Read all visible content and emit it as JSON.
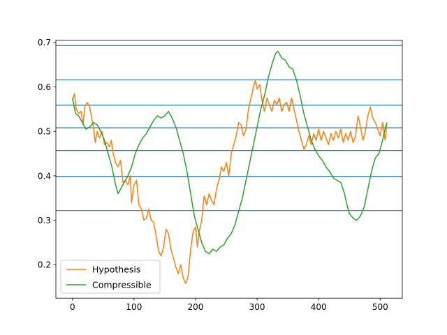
{
  "chart_data": {
    "type": "line",
    "xlim": [
      -27,
      536
    ],
    "ylim": [
      0.125,
      0.705
    ],
    "x_ticks": [
      0,
      100,
      200,
      300,
      400,
      500
    ],
    "y_ticks": [
      0.2,
      0.3,
      0.4,
      0.5,
      0.6,
      0.7
    ],
    "grid": false,
    "legend_position": "lower-left",
    "hlines": {
      "color": "#1f77b4",
      "values": [
        0.693,
        0.616,
        0.559,
        0.508,
        0.457,
        0.399,
        0.322
      ]
    },
    "series": [
      {
        "name": "Hypothesis",
        "color": "#ff7f0e",
        "points": [
          [
            0,
            0.57
          ],
          [
            3,
            0.585
          ],
          [
            6,
            0.55
          ],
          [
            10,
            0.54
          ],
          [
            14,
            0.545
          ],
          [
            17,
            0.515
          ],
          [
            20,
            0.555
          ],
          [
            24,
            0.565
          ],
          [
            28,
            0.555
          ],
          [
            31,
            0.53
          ],
          [
            34,
            0.51
          ],
          [
            37,
            0.475
          ],
          [
            40,
            0.5
          ],
          [
            44,
            0.485
          ],
          [
            48,
            0.5
          ],
          [
            52,
            0.47
          ],
          [
            56,
            0.475
          ],
          [
            60,
            0.465
          ],
          [
            63,
            0.48
          ],
          [
            66,
            0.45
          ],
          [
            70,
            0.43
          ],
          [
            74,
            0.42
          ],
          [
            78,
            0.435
          ],
          [
            82,
            0.385
          ],
          [
            86,
            0.39
          ],
          [
            90,
            0.38
          ],
          [
            94,
            0.4
          ],
          [
            96,
            0.34
          ],
          [
            100,
            0.38
          ],
          [
            104,
            0.39
          ],
          [
            108,
            0.335
          ],
          [
            112,
            0.325
          ],
          [
            116,
            0.3
          ],
          [
            120,
            0.305
          ],
          [
            124,
            0.325
          ],
          [
            128,
            0.3
          ],
          [
            132,
            0.295
          ],
          [
            136,
            0.265
          ],
          [
            140,
            0.23
          ],
          [
            144,
            0.22
          ],
          [
            148,
            0.24
          ],
          [
            152,
            0.28
          ],
          [
            156,
            0.27
          ],
          [
            160,
            0.235
          ],
          [
            164,
            0.215
          ],
          [
            168,
            0.195
          ],
          [
            172,
            0.18
          ],
          [
            176,
            0.2
          ],
          [
            180,
            0.17
          ],
          [
            184,
            0.158
          ],
          [
            188,
            0.175
          ],
          [
            192,
            0.235
          ],
          [
            196,
            0.275
          ],
          [
            200,
            0.285
          ],
          [
            203,
            0.24
          ],
          [
            206,
            0.275
          ],
          [
            210,
            0.3
          ],
          [
            214,
            0.355
          ],
          [
            218,
            0.335
          ],
          [
            222,
            0.36
          ],
          [
            226,
            0.345
          ],
          [
            230,
            0.335
          ],
          [
            234,
            0.37
          ],
          [
            238,
            0.39
          ],
          [
            242,
            0.42
          ],
          [
            246,
            0.41
          ],
          [
            250,
            0.43
          ],
          [
            254,
            0.4
          ],
          [
            258,
            0.45
          ],
          [
            262,
            0.47
          ],
          [
            266,
            0.49
          ],
          [
            270,
            0.52
          ],
          [
            274,
            0.515
          ],
          [
            278,
            0.49
          ],
          [
            282,
            0.505
          ],
          [
            286,
            0.55
          ],
          [
            290,
            0.575
          ],
          [
            294,
            0.6
          ],
          [
            297,
            0.615
          ],
          [
            300,
            0.595
          ],
          [
            304,
            0.605
          ],
          [
            308,
            0.57
          ],
          [
            312,
            0.545
          ],
          [
            316,
            0.575
          ],
          [
            320,
            0.56
          ],
          [
            324,
            0.545
          ],
          [
            328,
            0.57
          ],
          [
            332,
            0.56
          ],
          [
            336,
            0.575
          ],
          [
            340,
            0.545
          ],
          [
            344,
            0.56
          ],
          [
            348,
            0.565
          ],
          [
            352,
            0.545
          ],
          [
            356,
            0.575
          ],
          [
            360,
            0.55
          ],
          [
            364,
            0.525
          ],
          [
            368,
            0.5
          ],
          [
            372,
            0.48
          ],
          [
            376,
            0.46
          ],
          [
            380,
            0.47
          ],
          [
            384,
            0.49
          ],
          [
            388,
            0.47
          ],
          [
            392,
            0.495
          ],
          [
            396,
            0.48
          ],
          [
            400,
            0.505
          ],
          [
            404,
            0.48
          ],
          [
            408,
            0.5
          ],
          [
            412,
            0.485
          ],
          [
            416,
            0.47
          ],
          [
            420,
            0.495
          ],
          [
            424,
            0.48
          ],
          [
            428,
            0.5
          ],
          [
            432,
            0.485
          ],
          [
            436,
            0.505
          ],
          [
            440,
            0.475
          ],
          [
            444,
            0.495
          ],
          [
            448,
            0.48
          ],
          [
            452,
            0.5
          ],
          [
            456,
            0.475
          ],
          [
            460,
            0.49
          ],
          [
            464,
            0.535
          ],
          [
            468,
            0.51
          ],
          [
            472,
            0.48
          ],
          [
            476,
            0.5
          ],
          [
            480,
            0.535
          ],
          [
            484,
            0.555
          ],
          [
            488,
            0.53
          ],
          [
            492,
            0.52
          ],
          [
            496,
            0.505
          ],
          [
            500,
            0.49
          ],
          [
            504,
            0.52
          ],
          [
            508,
            0.48
          ],
          [
            511,
            0.515
          ]
        ]
      },
      {
        "name": "Compressible",
        "color": "#2ca02c",
        "points": [
          [
            0,
            0.575
          ],
          [
            5,
            0.54
          ],
          [
            10,
            0.535
          ],
          [
            16,
            0.52
          ],
          [
            22,
            0.505
          ],
          [
            28,
            0.51
          ],
          [
            34,
            0.52
          ],
          [
            40,
            0.515
          ],
          [
            46,
            0.5
          ],
          [
            52,
            0.48
          ],
          [
            58,
            0.45
          ],
          [
            64,
            0.42
          ],
          [
            70,
            0.38
          ],
          [
            74,
            0.36
          ],
          [
            78,
            0.37
          ],
          [
            84,
            0.385
          ],
          [
            90,
            0.4
          ],
          [
            96,
            0.42
          ],
          [
            102,
            0.45
          ],
          [
            108,
            0.47
          ],
          [
            114,
            0.485
          ],
          [
            120,
            0.495
          ],
          [
            126,
            0.51
          ],
          [
            132,
            0.525
          ],
          [
            138,
            0.535
          ],
          [
            144,
            0.53
          ],
          [
            150,
            0.535
          ],
          [
            156,
            0.545
          ],
          [
            162,
            0.53
          ],
          [
            168,
            0.51
          ],
          [
            174,
            0.48
          ],
          [
            180,
            0.45
          ],
          [
            186,
            0.41
          ],
          [
            192,
            0.36
          ],
          [
            198,
            0.31
          ],
          [
            204,
            0.28
          ],
          [
            210,
            0.25
          ],
          [
            216,
            0.23
          ],
          [
            222,
            0.225
          ],
          [
            228,
            0.235
          ],
          [
            234,
            0.23
          ],
          [
            240,
            0.24
          ],
          [
            246,
            0.245
          ],
          [
            252,
            0.26
          ],
          [
            258,
            0.27
          ],
          [
            264,
            0.29
          ],
          [
            270,
            0.32
          ],
          [
            276,
            0.35
          ],
          [
            282,
            0.39
          ],
          [
            288,
            0.43
          ],
          [
            294,
            0.47
          ],
          [
            300,
            0.51
          ],
          [
            306,
            0.55
          ],
          [
            312,
            0.58
          ],
          [
            318,
            0.62
          ],
          [
            324,
            0.65
          ],
          [
            330,
            0.675
          ],
          [
            334,
            0.68
          ],
          [
            340,
            0.665
          ],
          [
            346,
            0.66
          ],
          [
            352,
            0.645
          ],
          [
            358,
            0.64
          ],
          [
            364,
            0.615
          ],
          [
            370,
            0.58
          ],
          [
            376,
            0.54
          ],
          [
            382,
            0.51
          ],
          [
            388,
            0.48
          ],
          [
            394,
            0.46
          ],
          [
            400,
            0.445
          ],
          [
            406,
            0.435
          ],
          [
            412,
            0.42
          ],
          [
            418,
            0.41
          ],
          [
            424,
            0.395
          ],
          [
            430,
            0.39
          ],
          [
            436,
            0.385
          ],
          [
            442,
            0.36
          ],
          [
            446,
            0.335
          ],
          [
            450,
            0.315
          ],
          [
            456,
            0.305
          ],
          [
            462,
            0.3
          ],
          [
            468,
            0.31
          ],
          [
            474,
            0.33
          ],
          [
            480,
            0.37
          ],
          [
            486,
            0.41
          ],
          [
            492,
            0.44
          ],
          [
            498,
            0.45
          ],
          [
            504,
            0.48
          ],
          [
            508,
            0.505
          ],
          [
            511,
            0.52
          ]
        ]
      }
    ]
  }
}
